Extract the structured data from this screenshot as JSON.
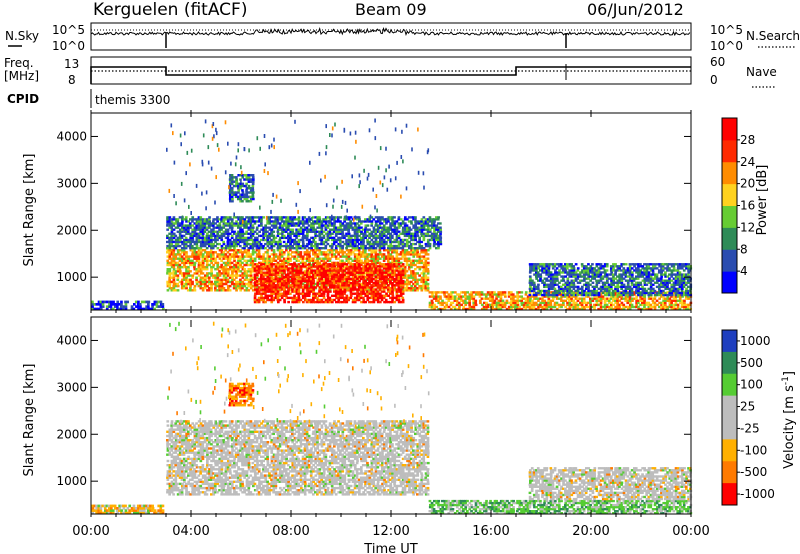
{
  "header": {
    "station": "Kerguelen (fitACF)",
    "beam": "Beam 09",
    "date": "06/Jun/2012"
  },
  "top_panels": {
    "nsky_label": "N.Sky",
    "nsky_ticks": [
      "10^5",
      "10^0"
    ],
    "nsearch_label": "N.Search",
    "nsearch_ticks": [
      "10^5",
      "10^0"
    ],
    "freq_label_1": "Freq.",
    "freq_label_2": "[MHz]",
    "freq_ticks": [
      "13",
      "8"
    ],
    "nave_label": "Nave",
    "nave_ticks": [
      "60",
      "0"
    ],
    "cpid_label": "CPID",
    "cpid_value": "themis 3300"
  },
  "chart_data": [
    {
      "type": "heatmap",
      "name": "power",
      "ylabel": "Slant Range [km]",
      "yticks": [
        "1000",
        "2000",
        "3000",
        "4000"
      ],
      "ylim": [
        300,
        4500
      ],
      "colorbar": {
        "label": "Power [dB]",
        "tick_labels": [
          "4",
          "8",
          "12",
          "16",
          "20",
          "24",
          "28"
        ],
        "colors": [
          "#0000ff",
          "#2a4cb0",
          "#2e8b57",
          "#66cc33",
          "#ffd21f",
          "#ff8c00",
          "#ff2a00",
          "#ff0000"
        ]
      },
      "regions": [
        {
          "t0": 0.0,
          "t1": 2.9,
          "r0": 300,
          "r1": 500,
          "v": "low"
        },
        {
          "t0": 3.0,
          "t1": 13.5,
          "r0": 700,
          "r1": 1600,
          "v": "high"
        },
        {
          "t0": 6.5,
          "t1": 12.5,
          "r0": 450,
          "r1": 1300,
          "v": "max"
        },
        {
          "t0": 3.0,
          "t1": 14.0,
          "r0": 1600,
          "r1": 2300,
          "v": "mid"
        },
        {
          "t0": 5.5,
          "t1": 6.5,
          "r0": 2600,
          "r1": 3200,
          "v": "mid"
        },
        {
          "t0": 13.5,
          "t1": 24.0,
          "r0": 300,
          "r1": 700,
          "v": "high"
        },
        {
          "t0": 17.5,
          "t1": 24.0,
          "r0": 600,
          "r1": 1300,
          "v": "mid"
        }
      ]
    },
    {
      "type": "heatmap",
      "name": "velocity",
      "ylabel": "Slant Range [km]",
      "yticks": [
        "1000",
        "2000",
        "3000",
        "4000"
      ],
      "ylim": [
        300,
        4500
      ],
      "colorbar": {
        "label": "Velocity [m s",
        "label_sup": "-1",
        "label_close": "]",
        "tick_labels": [
          "1000",
          "500",
          "100",
          "25",
          "-25",
          "-100",
          "-500",
          "-1000"
        ],
        "colors": [
          "#1f3fbf",
          "#2e8b57",
          "#55cc33",
          "#bdbdbd",
          "#bdbdbd",
          "#ffb000",
          "#ff7a00",
          "#ff0000"
        ]
      },
      "regions": [
        {
          "t0": 0.0,
          "t1": 2.9,
          "r0": 300,
          "r1": 500,
          "v": "mix"
        },
        {
          "t0": 3.0,
          "t1": 13.5,
          "r0": 700,
          "r1": 2300,
          "v": "gray"
        },
        {
          "t0": 5.5,
          "t1": 6.5,
          "r0": 2600,
          "r1": 3100,
          "v": "neg"
        },
        {
          "t0": 13.5,
          "t1": 24.0,
          "r0": 300,
          "r1": 600,
          "v": "pos"
        },
        {
          "t0": 17.5,
          "t1": 24.0,
          "r0": 600,
          "r1": 1300,
          "v": "gray"
        }
      ]
    }
  ],
  "time_axis": {
    "label": "Time UT",
    "ticks": [
      "00:00",
      "04:00",
      "08:00",
      "12:00",
      "16:00",
      "20:00",
      "00:00"
    ]
  }
}
